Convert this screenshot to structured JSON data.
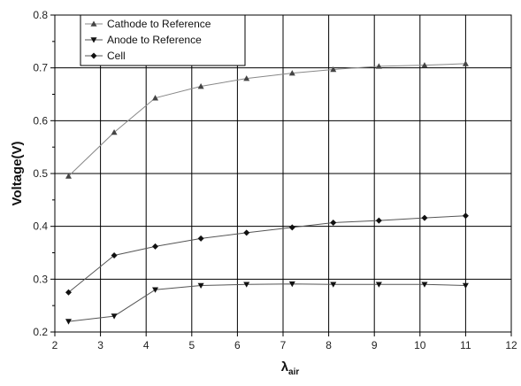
{
  "chart_data": {
    "type": "line",
    "xlabel": "λ",
    "xlabel_sub": "air",
    "ylabel": "Voltage(V)",
    "xlim": [
      2,
      12
    ],
    "ylim": [
      0.2,
      0.8
    ],
    "xticks": [
      2,
      3,
      4,
      5,
      6,
      7,
      8,
      9,
      10,
      11,
      12
    ],
    "yticks": [
      0.2,
      0.3,
      0.4,
      0.5,
      0.6,
      0.7,
      0.8
    ],
    "ytick_labels": [
      "0.2",
      "0.3",
      "0.4",
      "0.5",
      "0.6",
      "0.7",
      "0.8"
    ],
    "grid": true,
    "legend_position": "top-left",
    "x": [
      2.3,
      3.3,
      4.2,
      5.2,
      6.2,
      7.2,
      8.1,
      9.1,
      10.1,
      11.0
    ],
    "series": [
      {
        "name": "Cathode to Reference",
        "marker": "triangle-up",
        "color": "#888888",
        "values": [
          0.495,
          0.578,
          0.643,
          0.665,
          0.68,
          0.69,
          0.697,
          0.703,
          0.705,
          0.708
        ]
      },
      {
        "name": "Anode to Reference",
        "marker": "triangle-down",
        "color": "#555555",
        "values": [
          0.22,
          0.23,
          0.28,
          0.288,
          0.29,
          0.291,
          0.29,
          0.29,
          0.29,
          0.288
        ]
      },
      {
        "name": "Cell",
        "marker": "diamond",
        "color": "#555555",
        "values": [
          0.275,
          0.345,
          0.362,
          0.377,
          0.388,
          0.398,
          0.407,
          0.411,
          0.416,
          0.42
        ]
      }
    ]
  }
}
